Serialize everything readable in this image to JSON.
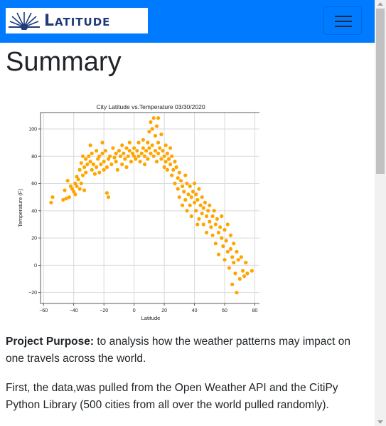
{
  "navbar": {
    "brand_text": "Latitude",
    "brand_color": "#1f3b7a",
    "background": "#007bff",
    "toggle_icon": "hamburger-icon"
  },
  "page": {
    "title": "Summary"
  },
  "chart_data": {
    "type": "scatter",
    "title": "City Latitude vs.Temperature 03/30/2020",
    "xlabel": "Latitude",
    "ylabel": "Temperature (F)",
    "xlim": [
      -62,
      84
    ],
    "ylim": [
      -28,
      112
    ],
    "xticks": [
      -60,
      -40,
      -20,
      0,
      20,
      40,
      60,
      80
    ],
    "yticks": [
      -20,
      0,
      20,
      40,
      60,
      80,
      100
    ],
    "grid": true,
    "color": "#ffa500",
    "points": [
      [
        -55,
        46
      ],
      [
        -54,
        50
      ],
      [
        -47,
        48
      ],
      [
        -46,
        55
      ],
      [
        -45,
        49
      ],
      [
        -44,
        62
      ],
      [
        -43,
        50
      ],
      [
        -42,
        58
      ],
      [
        -41,
        56
      ],
      [
        -40,
        54
      ],
      [
        -39,
        52
      ],
      [
        -39,
        60
      ],
      [
        -38,
        65
      ],
      [
        -38,
        58
      ],
      [
        -37,
        63
      ],
      [
        -36,
        56
      ],
      [
        -36,
        70
      ],
      [
        -35,
        75
      ],
      [
        -35,
        60
      ],
      [
        -34,
        80
      ],
      [
        -34,
        66
      ],
      [
        -33,
        72
      ],
      [
        -33,
        55
      ],
      [
        -32,
        78
      ],
      [
        -32,
        68
      ],
      [
        -31,
        74
      ],
      [
        -30,
        80
      ],
      [
        -29,
        76
      ],
      [
        -28,
        70
      ],
      [
        -28,
        82
      ],
      [
        -27,
        74
      ],
      [
        -26,
        67
      ],
      [
        -25,
        72
      ],
      [
        -24,
        78
      ],
      [
        -23,
        80
      ],
      [
        -23,
        68
      ],
      [
        -22,
        74
      ],
      [
        -21,
        90
      ],
      [
        -21,
        82
      ],
      [
        -20,
        76
      ],
      [
        -20,
        70
      ],
      [
        -19,
        84
      ],
      [
        -18,
        72
      ],
      [
        -18,
        53
      ],
      [
        -17,
        50
      ],
      [
        -17,
        78
      ],
      [
        -16,
        80
      ],
      [
        -15,
        74
      ],
      [
        -14,
        86
      ],
      [
        -13,
        79
      ],
      [
        -12,
        76
      ],
      [
        -12,
        82
      ],
      [
        -11,
        70
      ],
      [
        -10,
        84
      ],
      [
        -9,
        80
      ],
      [
        -8,
        88
      ],
      [
        -8,
        74
      ],
      [
        -7,
        82
      ],
      [
        -6,
        78
      ],
      [
        -5,
        86
      ],
      [
        -5,
        72
      ],
      [
        -4,
        80
      ],
      [
        -3,
        84
      ],
      [
        -2,
        76
      ],
      [
        -1,
        82
      ],
      [
        0,
        86
      ],
      [
        0,
        80
      ],
      [
        1,
        78
      ],
      [
        2,
        84
      ],
      [
        3,
        80
      ],
      [
        3,
        90
      ],
      [
        4,
        76
      ],
      [
        5,
        82
      ],
      [
        6,
        86
      ],
      [
        7,
        74
      ],
      [
        7,
        80
      ],
      [
        8,
        84
      ],
      [
        9,
        90
      ],
      [
        9,
        78
      ],
      [
        10,
        86
      ],
      [
        10,
        98
      ],
      [
        11,
        82
      ],
      [
        11,
        105
      ],
      [
        12,
        100
      ],
      [
        12,
        88
      ],
      [
        13,
        108
      ],
      [
        13,
        80
      ],
      [
        14,
        95
      ],
      [
        14,
        84
      ],
      [
        15,
        102
      ],
      [
        15,
        76
      ],
      [
        16,
        90
      ],
      [
        16,
        82
      ],
      [
        17,
        86
      ],
      [
        18,
        96
      ],
      [
        18,
        78
      ],
      [
        19,
        84
      ],
      [
        20,
        80
      ],
      [
        20,
        72
      ],
      [
        21,
        76
      ],
      [
        21,
        88
      ],
      [
        22,
        82
      ],
      [
        22,
        70
      ],
      [
        23,
        78
      ],
      [
        24,
        86
      ],
      [
        24,
        74
      ],
      [
        25,
        66
      ],
      [
        25,
        80
      ],
      [
        26,
        70
      ],
      [
        27,
        76
      ],
      [
        27,
        60
      ],
      [
        28,
        72
      ],
      [
        29,
        64
      ],
      [
        29,
        56
      ],
      [
        30,
        68
      ],
      [
        30,
        50
      ],
      [
        31,
        62
      ],
      [
        32,
        58
      ],
      [
        32,
        44
      ],
      [
        33,
        54
      ],
      [
        34,
        66
      ],
      [
        34,
        48
      ],
      [
        35,
        60
      ],
      [
        35,
        40
      ],
      [
        36,
        52
      ],
      [
        37,
        58
      ],
      [
        37,
        44
      ],
      [
        38,
        50
      ],
      [
        38,
        36
      ],
      [
        39,
        54
      ],
      [
        40,
        46
      ],
      [
        40,
        60
      ],
      [
        41,
        40
      ],
      [
        41,
        52
      ],
      [
        42,
        48
      ],
      [
        43,
        56
      ],
      [
        43,
        34
      ],
      [
        44,
        44
      ],
      [
        45,
        38
      ],
      [
        45,
        50
      ],
      [
        46,
        30
      ],
      [
        46,
        42
      ],
      [
        47,
        46
      ],
      [
        48,
        36
      ],
      [
        48,
        24
      ],
      [
        49,
        40
      ],
      [
        50,
        32
      ],
      [
        50,
        44
      ],
      [
        51,
        28
      ],
      [
        52,
        36
      ],
      [
        52,
        22
      ],
      [
        53,
        40
      ],
      [
        54,
        30
      ],
      [
        54,
        16
      ],
      [
        55,
        34
      ],
      [
        56,
        24
      ],
      [
        56,
        8
      ],
      [
        57,
        28
      ],
      [
        58,
        20
      ],
      [
        58,
        36
      ],
      [
        59,
        14
      ],
      [
        60,
        26
      ],
      [
        60,
        4
      ],
      [
        61,
        18
      ],
      [
        62,
        30
      ],
      [
        62,
        10
      ],
      [
        63,
        -2
      ],
      [
        64,
        22
      ],
      [
        64,
        12
      ],
      [
        65,
        6
      ],
      [
        65,
        -14
      ],
      [
        66,
        16
      ],
      [
        66,
        2
      ],
      [
        67,
        -6
      ],
      [
        68,
        10
      ],
      [
        68,
        -20
      ],
      [
        69,
        4
      ],
      [
        70,
        -10
      ],
      [
        71,
        6
      ],
      [
        72,
        -4
      ],
      [
        73,
        -8
      ],
      [
        74,
        2
      ],
      [
        75,
        -6
      ],
      [
        78,
        -4
      ],
      [
        -3,
        90
      ],
      [
        6,
        92
      ],
      [
        16,
        108
      ],
      [
        -25,
        84
      ],
      [
        -29,
        88
      ],
      [
        42,
        30
      ]
    ]
  },
  "content": {
    "purpose_label": "Project Purpose:",
    "purpose_text": " to analysis how the weather patterns may impact on one travels across the world.",
    "first_paragraph": "First, the data,was pulled from the Open Weather API and the CitiPy Python Library (500 cities from all over the world pulled randomly)."
  }
}
